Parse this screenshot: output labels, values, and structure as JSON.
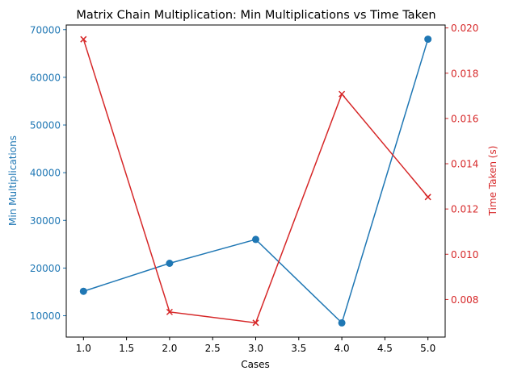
{
  "chart_data": {
    "type": "line",
    "title": "Matrix Chain Multiplication: Min Multiplications vs Time Taken",
    "xlabel": "Cases",
    "x": [
      1,
      2,
      3,
      4,
      5
    ],
    "xlim": [
      0.8,
      5.2
    ],
    "xticks": [
      "1.0",
      "1.5",
      "2.0",
      "2.5",
      "3.0",
      "3.5",
      "4.0",
      "4.5",
      "5.0"
    ],
    "grid": false,
    "series": [
      {
        "name": "Min Multiplications",
        "axis": "left",
        "color": "#1f77b4",
        "marker": "circle",
        "values": [
          15125,
          21000,
          26000,
          8500,
          68000
        ]
      },
      {
        "name": "Time Taken (s)",
        "axis": "right",
        "color": "#d62728",
        "marker": "x",
        "values": [
          0.0195,
          0.00745,
          0.00697,
          0.01708,
          0.01253
        ]
      }
    ],
    "y_left": {
      "label": "Min Multiplications",
      "color": "#1f77b4",
      "ylim": [
        5525,
        70975
      ],
      "ticks": [
        "10000",
        "20000",
        "30000",
        "40000",
        "50000",
        "60000",
        "70000"
      ]
    },
    "y_right": {
      "label": "Time Taken (s)",
      "color": "#d62728",
      "ylim": [
        0.00634,
        0.02013
      ],
      "ticks": [
        "0.008",
        "0.010",
        "0.012",
        "0.014",
        "0.016",
        "0.018",
        "0.020"
      ]
    }
  }
}
